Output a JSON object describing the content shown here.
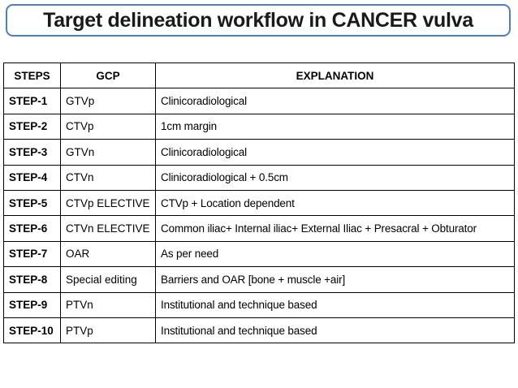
{
  "title": "Target delineation workflow in CANCER vulva",
  "colors": {
    "title_border": "#4a7fc1",
    "table_border": "#000000"
  },
  "table": {
    "headers": [
      "STEPS",
      "GCP",
      "EXPLANATION"
    ],
    "rows": [
      {
        "step": "STEP-1",
        "gcp": "GTVp",
        "explanation": "Clinicoradiological"
      },
      {
        "step": "STEP-2",
        "gcp": "CTVp",
        "explanation": "1cm margin"
      },
      {
        "step": "STEP-3",
        "gcp": "GTVn",
        "explanation": "Clinicoradiological"
      },
      {
        "step": "STEP-4",
        "gcp": "CTVn",
        "explanation": "Clinicoradiological  + 0.5cm"
      },
      {
        "step": "STEP-5",
        "gcp": "CTVp ELECTIVE",
        "explanation": "CTVp  +  Location dependent"
      },
      {
        "step": "STEP-6",
        "gcp": "CTVn ELECTIVE",
        "explanation": "Common iliac+ Internal iliac+ External Iliac + Presacral + Obturator"
      },
      {
        "step": "STEP-7",
        "gcp": "OAR",
        "explanation": "As per need"
      },
      {
        "step": "STEP-8",
        "gcp": "Special editing",
        "explanation": "Barriers and OAR [bone + muscle +air]"
      },
      {
        "step": "STEP-9",
        "gcp": "PTVn",
        "explanation": "Institutional and technique based"
      },
      {
        "step": "STEP-10",
        "gcp": "PTVp",
        "explanation": "Institutional and technique based"
      }
    ]
  }
}
